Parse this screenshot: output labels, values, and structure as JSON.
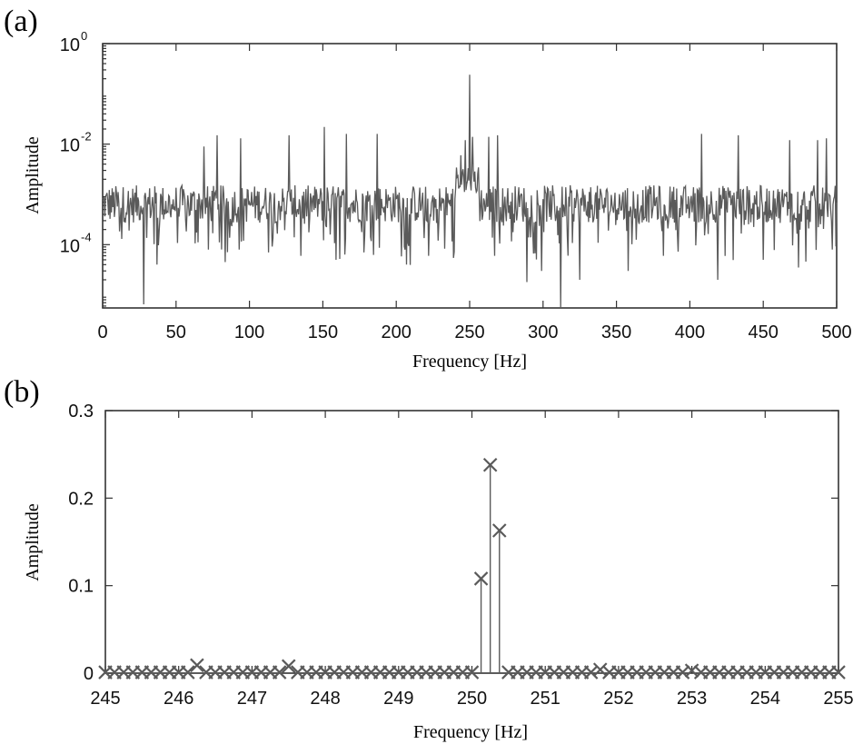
{
  "colors": {
    "series": "#5a5a5a",
    "axis": "#333333",
    "background": "#ffffff"
  },
  "chart_data": [
    {
      "panel_label": "(a)",
      "type": "line",
      "xlabel": "Frequency [Hz]",
      "ylabel": "Amplitude",
      "xlim": [
        0,
        500
      ],
      "ylim": [
        5.5e-06,
        1
      ],
      "yscale": "log",
      "x_ticks": [
        "0",
        "50",
        "100",
        "150",
        "200",
        "250",
        "300",
        "350",
        "400",
        "450",
        "500"
      ],
      "y_ticks": [
        {
          "base": "10",
          "exp": "0",
          "value": 1
        },
        {
          "base": "10",
          "exp": "-2",
          "value": 0.01
        },
        {
          "base": "10",
          "exp": "-4",
          "value": 0.0001
        }
      ],
      "grid": false,
      "noise_floor_approx": 0.0007,
      "peaks": [
        {
          "x": 69,
          "y": 0.009
        },
        {
          "x": 78,
          "y": 0.015
        },
        {
          "x": 94,
          "y": 0.013
        },
        {
          "x": 127,
          "y": 0.015
        },
        {
          "x": 151,
          "y": 0.022
        },
        {
          "x": 166,
          "y": 0.016
        },
        {
          "x": 187,
          "y": 0.016
        },
        {
          "x": 244,
          "y": 0.006
        },
        {
          "x": 247,
          "y": 0.012
        },
        {
          "x": 250,
          "y": 0.24
        },
        {
          "x": 252,
          "y": 0.014
        },
        {
          "x": 263,
          "y": 0.014
        },
        {
          "x": 269,
          "y": 0.015
        },
        {
          "x": 408,
          "y": 0.016
        },
        {
          "x": 433,
          "y": 0.015
        },
        {
          "x": 468,
          "y": 0.012
        },
        {
          "x": 487,
          "y": 0.012
        },
        {
          "x": 493,
          "y": 0.013
        }
      ],
      "dips": [
        {
          "x": 13,
          "y": 0.00013
        },
        {
          "x": 28,
          "y": 6.5e-06
        },
        {
          "x": 37,
          "y": 4e-05
        },
        {
          "x": 72,
          "y": 8e-05
        },
        {
          "x": 93,
          "y": 8e-05
        },
        {
          "x": 113,
          "y": 7e-05
        },
        {
          "x": 135,
          "y": 6e-05
        },
        {
          "x": 159,
          "y": 5e-05
        },
        {
          "x": 178,
          "y": 7e-05
        },
        {
          "x": 207,
          "y": 4e-05
        },
        {
          "x": 222,
          "y": 6e-05
        },
        {
          "x": 267,
          "y": 6e-05
        },
        {
          "x": 289,
          "y": 1.8e-05
        },
        {
          "x": 299,
          "y": 3e-05
        },
        {
          "x": 312,
          "y": 5.5e-06
        },
        {
          "x": 325,
          "y": 2e-05
        },
        {
          "x": 358,
          "y": 3e-05
        },
        {
          "x": 382,
          "y": 6e-05
        },
        {
          "x": 419,
          "y": 2e-05
        },
        {
          "x": 450,
          "y": 5e-05
        },
        {
          "x": 474,
          "y": 3.5e-05
        },
        {
          "x": 497,
          "y": 8e-05
        }
      ]
    },
    {
      "panel_label": "(b)",
      "type": "stem",
      "xlabel": "Frequency [Hz]",
      "ylabel": "Amplitude",
      "xlim": [
        245,
        255
      ],
      "ylim": [
        0,
        0.3
      ],
      "x_ticks": [
        "245",
        "246",
        "247",
        "248",
        "249",
        "250",
        "251",
        "252",
        "253",
        "254",
        "255"
      ],
      "y_ticks": [
        "0",
        "0.1",
        "0.2",
        "0.3"
      ],
      "grid": false,
      "marker": "x",
      "x_step": 0.125,
      "points": [
        {
          "x": 246.25,
          "y": 0.009
        },
        {
          "x": 247.5,
          "y": 0.008
        },
        {
          "x": 250.125,
          "y": 0.108
        },
        {
          "x": 250.25,
          "y": 0.238
        },
        {
          "x": 250.375,
          "y": 0.163
        },
        {
          "x": 251.75,
          "y": 0.004
        },
        {
          "x": 253.0,
          "y": 0.003
        }
      ],
      "baseline_value": 0.001
    }
  ]
}
